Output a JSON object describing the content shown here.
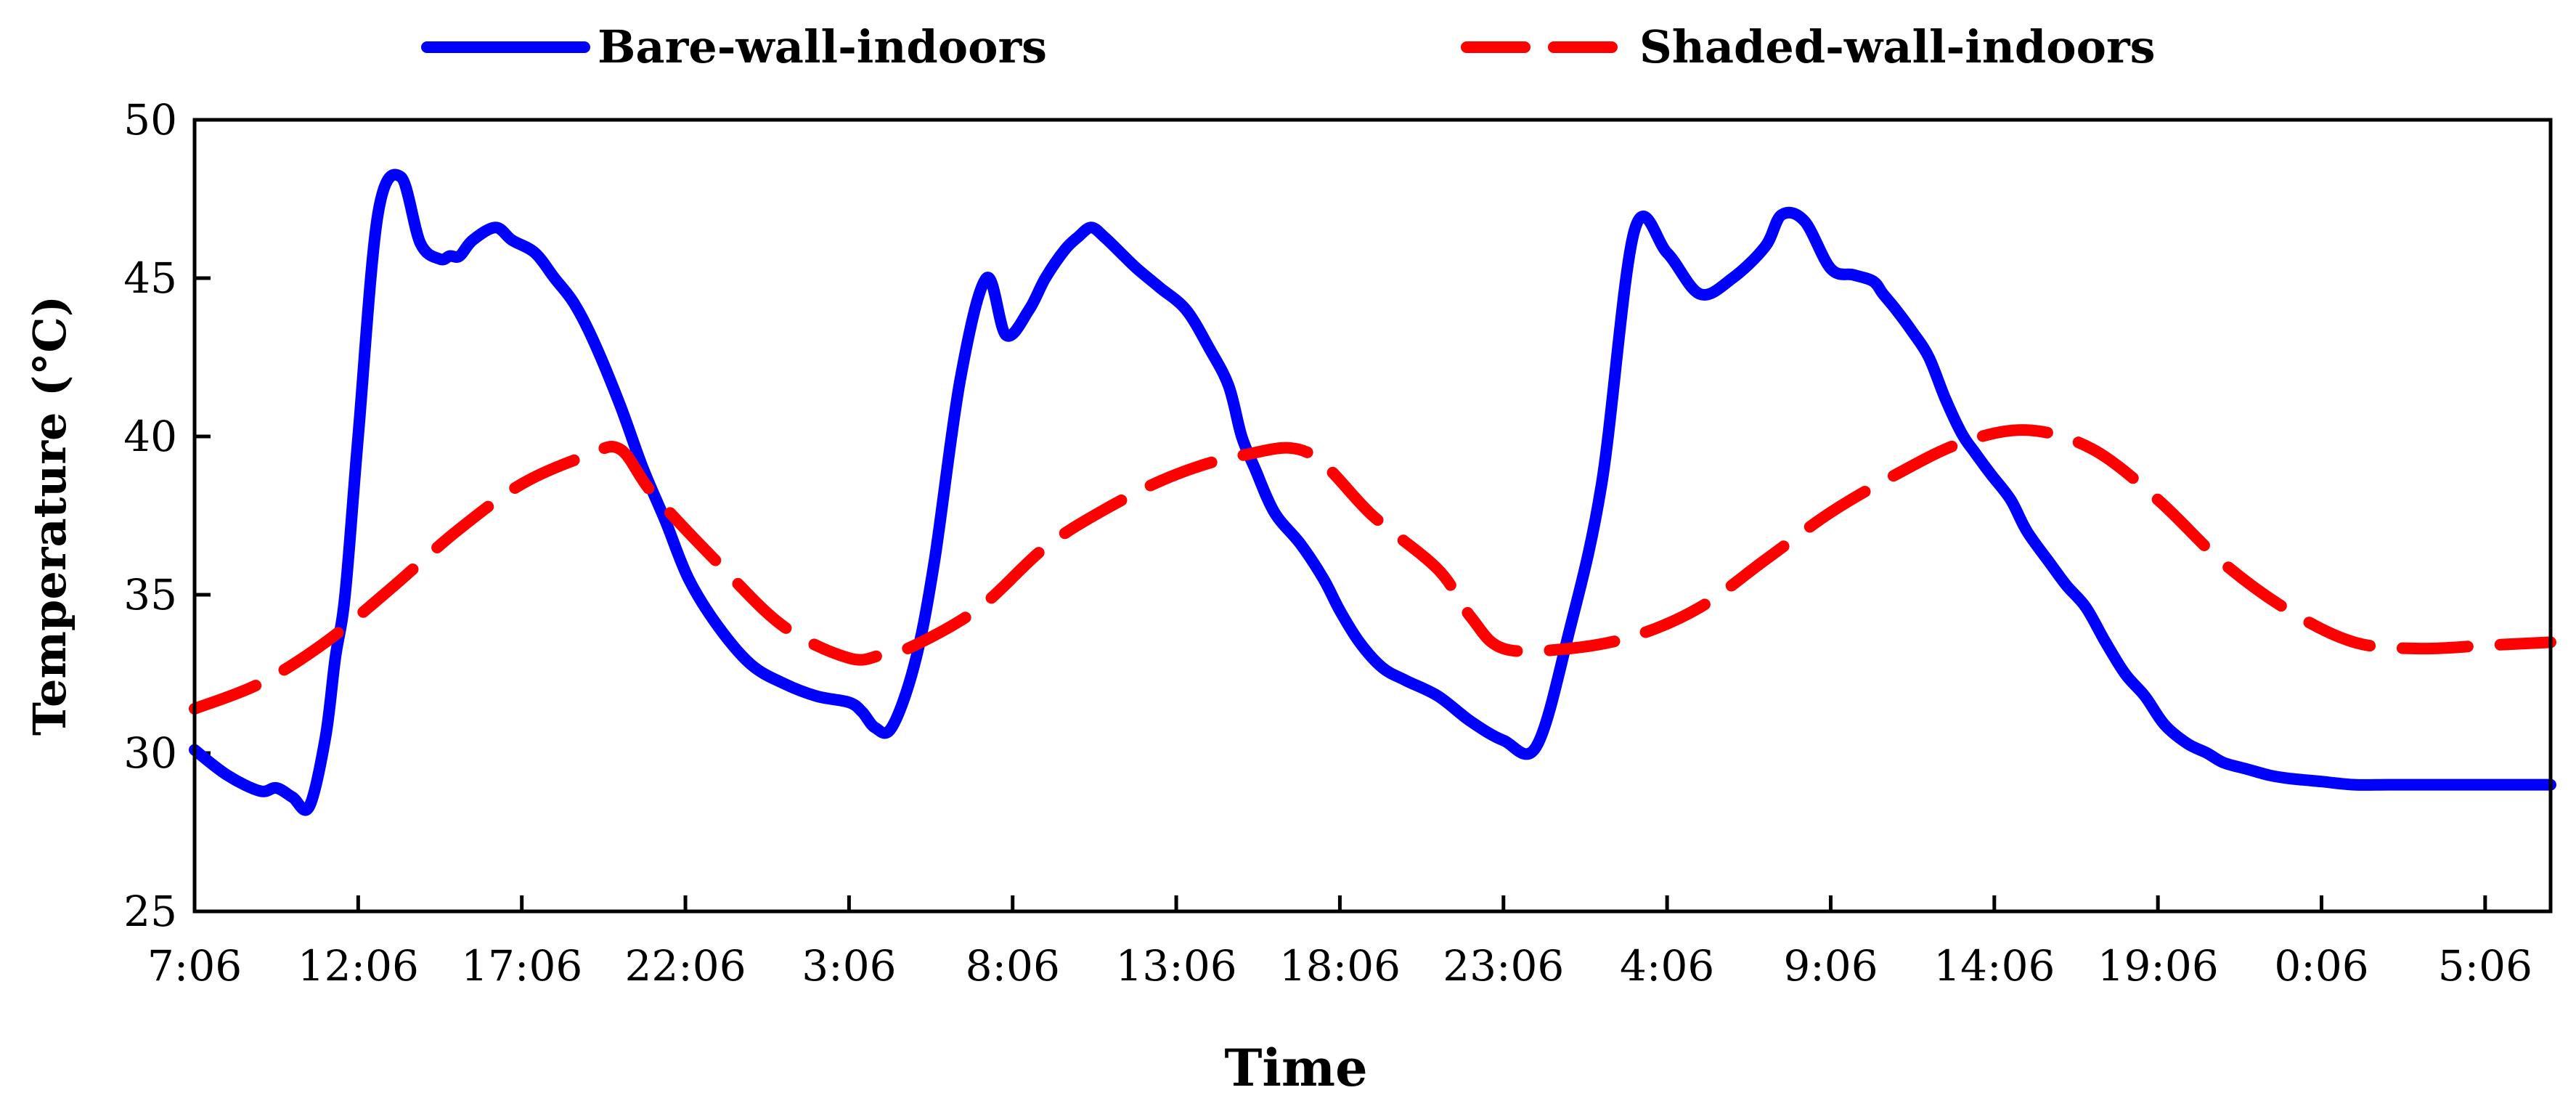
{
  "chart_data": {
    "type": "line",
    "title": "",
    "xlabel": "Time",
    "ylabel": "Temperature (°C)",
    "ylim": [
      25,
      50
    ],
    "yticks": [
      25,
      30,
      35,
      40,
      45,
      50
    ],
    "xlim_hours": [
      0,
      72
    ],
    "x_tick_labels": [
      "7:06",
      "12:06",
      "17:06",
      "22:06",
      "3:06",
      "8:06",
      "13:06",
      "18:06",
      "23:06",
      "4:06",
      "9:06",
      "14:06",
      "19:06",
      "0:06",
      "5:06"
    ],
    "x_units": "hours elapsed since 7:06",
    "legend_position": "top-center",
    "series": [
      {
        "name": "Bare-wall-indoors",
        "color": "#0000ff",
        "style": "solid",
        "x": [
          0,
          1,
          2,
          2.5,
          3,
          3.5,
          4,
          4.3,
          4.6,
          5,
          5.6,
          6.3,
          6.9,
          7.5,
          7.8,
          8.1,
          8.5,
          9.2,
          9.7,
          10.4,
          11,
          11.6,
          12.2,
          13,
          13.7,
          14.4,
          15.1,
          16,
          17,
          18,
          19,
          20,
          20.4,
          20.8,
          21.3,
          22,
          22.6,
          23.4,
          24.2,
          24.8,
          25.5,
          26,
          26.6,
          27,
          27.4,
          27.8,
          28.3,
          28.8,
          29.5,
          30.3,
          31,
          31.6,
          32,
          32.4,
          33,
          33.8,
          34.5,
          35,
          35.6,
          36.3,
          37,
          38,
          39,
          40,
          41,
          42,
          43,
          44,
          45,
          46,
          47,
          48,
          48.5,
          49.2,
          50,
          50.7,
          51.3,
          51.6,
          52,
          52.5,
          53,
          53.5,
          54,
          54.4,
          54.9,
          55.5,
          56,
          56.7,
          57.2,
          57.8,
          58.4,
          59,
          59.6,
          60.2,
          60.9,
          61.5,
          62,
          62.7,
          63.4,
          64,
          65,
          66,
          67,
          68,
          69,
          70,
          71,
          72
        ],
        "values": [
          30.1,
          29.3,
          28.8,
          28.9,
          28.6,
          28.3,
          30.5,
          33,
          35,
          40,
          47,
          48.2,
          46.1,
          45.6,
          45.7,
          45.7,
          46.2,
          46.6,
          46.2,
          45.8,
          45,
          44.2,
          43,
          41,
          39,
          37.3,
          35.5,
          34,
          32.8,
          32.2,
          31.8,
          31.6,
          31.3,
          30.8,
          30.8,
          32.8,
          36,
          41.8,
          45,
          43.2,
          44,
          45,
          45.9,
          46.3,
          46.6,
          46.3,
          45.8,
          45.3,
          44.7,
          44,
          42.8,
          41.6,
          40,
          39,
          37.6,
          36.6,
          35.5,
          34.5,
          33.5,
          32.7,
          32.3,
          31.8,
          31,
          30.4,
          30.2,
          33.8,
          38.5,
          46.5,
          45.8,
          44.5,
          45,
          46,
          47,
          46.8,
          45.3,
          45.1,
          44.9,
          44.5,
          44,
          43.3,
          42.5,
          41.2,
          40.1,
          39.5,
          38.8,
          38,
          37,
          36,
          35.3,
          34.6,
          33.5,
          32.5,
          31.8,
          30.9,
          30.3,
          30,
          29.7,
          29.5,
          29.3,
          29.2,
          29.1,
          29,
          29,
          29,
          29,
          29,
          29,
          29
        ]
      },
      {
        "name": "Shaded-wall-indoors",
        "color": "#ff0000",
        "style": "dashed",
        "x": [
          0,
          2,
          4,
          6,
          8,
          10,
          12,
          13,
          14,
          16,
          18,
          20,
          21,
          22,
          24,
          26,
          28,
          30,
          32,
          34,
          36,
          38,
          39,
          40,
          42,
          44,
          46,
          48,
          50,
          52,
          54,
          56,
          58,
          60,
          62,
          64,
          66,
          68,
          70,
          72
        ],
        "values": [
          31.4,
          32.2,
          33.5,
          35.2,
          37,
          38.5,
          39.4,
          39.6,
          38.2,
          36,
          34,
          33,
          33.1,
          33.4,
          34.6,
          36.5,
          37.8,
          38.8,
          39.4,
          39.5,
          37.5,
          35.8,
          34.3,
          33.3,
          33.3,
          33.7,
          34.6,
          36.1,
          37.6,
          38.8,
          39.8,
          40.2,
          39.6,
          38,
          36,
          34.5,
          33.5,
          33.3,
          33.4,
          33.5
        ]
      }
    ]
  }
}
